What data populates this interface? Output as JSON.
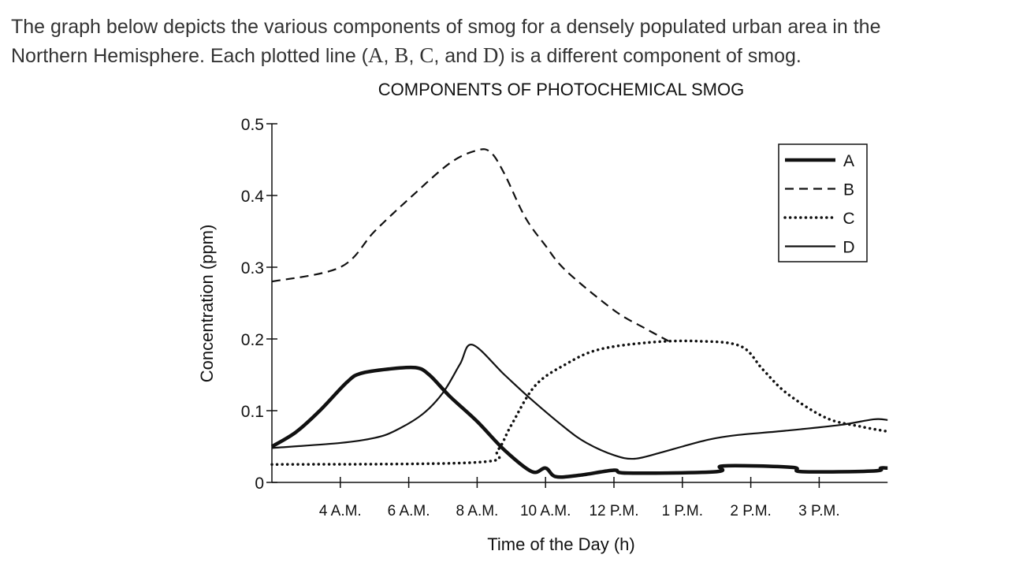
{
  "intro": {
    "line1": "The graph below depicts the various components of smog for a densely populated urban area in the",
    "line2_parts": [
      "Northern Hemisphere. Each plotted line (",
      "A",
      ", ",
      "B",
      ", ",
      "C",
      ", and ",
      "D",
      ") is a different component of smog."
    ]
  },
  "chart_data": {
    "type": "line",
    "title": "COMPONENTS OF PHOTOCHEMICAL SMOG",
    "xlabel": "Time of the Day (h)",
    "ylabel": "Concentration (ppm)",
    "x_tick_labels": [
      "4 A.M.",
      "6 A.M.",
      "8 A.M.",
      "10 A.M.",
      "12 P.M.",
      "1 P.M.",
      "2 P.M.",
      "3 P.M."
    ],
    "x_tick_positions": [
      1,
      2,
      3,
      4,
      5,
      6,
      7,
      8
    ],
    "xlim": [
      0,
      9
    ],
    "ylim": [
      0,
      0.5
    ],
    "y_ticks": [
      0,
      0.1,
      0.2,
      0.3,
      0.4,
      0.5
    ],
    "y_tick_labels": [
      "0",
      "0.1",
      "0.2",
      "0.3",
      "0.4",
      "0.5"
    ],
    "grid": false,
    "legend_position": "top-right",
    "series": [
      {
        "name": "A",
        "style": "thick-solid",
        "points": [
          [
            0,
            0.05
          ],
          [
            0.35,
            0.07
          ],
          [
            0.7,
            0.1
          ],
          [
            1.1,
            0.14
          ],
          [
            1.3,
            0.152
          ],
          [
            1.7,
            0.158
          ],
          [
            2.1,
            0.16
          ],
          [
            2.3,
            0.15
          ],
          [
            2.6,
            0.12
          ],
          [
            3.0,
            0.085
          ],
          [
            3.4,
            0.045
          ],
          [
            3.8,
            0.015
          ],
          [
            4.0,
            0.02
          ],
          [
            4.15,
            0.008
          ],
          [
            4.5,
            0.01
          ],
          [
            5.0,
            0.017
          ],
          [
            5.2,
            0.013
          ],
          [
            6.5,
            0.015
          ],
          [
            6.6,
            0.023
          ],
          [
            7.6,
            0.021
          ],
          [
            7.75,
            0.015
          ],
          [
            8.8,
            0.016
          ],
          [
            8.9,
            0.02
          ],
          [
            9.0,
            0.02
          ]
        ]
      },
      {
        "name": "B",
        "style": "dashed",
        "points": [
          [
            0,
            0.28
          ],
          [
            1.0,
            0.3
          ],
          [
            1.5,
            0.35
          ],
          [
            2.0,
            0.395
          ],
          [
            2.6,
            0.445
          ],
          [
            3.0,
            0.463
          ],
          [
            3.2,
            0.46
          ],
          [
            3.4,
            0.43
          ],
          [
            3.7,
            0.37
          ],
          [
            4.0,
            0.33
          ],
          [
            4.3,
            0.295
          ],
          [
            5.0,
            0.24
          ],
          [
            5.45,
            0.215
          ],
          [
            5.8,
            0.197
          ]
        ]
      },
      {
        "name": "C",
        "style": "dotted",
        "points": [
          [
            0,
            0.025
          ],
          [
            3.0,
            0.028
          ],
          [
            3.3,
            0.045
          ],
          [
            3.5,
            0.08
          ],
          [
            3.85,
            0.135
          ],
          [
            4.3,
            0.165
          ],
          [
            4.77,
            0.185
          ],
          [
            5.5,
            0.195
          ],
          [
            6.2,
            0.197
          ],
          [
            6.85,
            0.19
          ],
          [
            7.18,
            0.157
          ],
          [
            7.53,
            0.124
          ],
          [
            8.1,
            0.09
          ],
          [
            8.6,
            0.078
          ],
          [
            9.0,
            0.071
          ]
        ]
      },
      {
        "name": "D",
        "style": "thin-solid",
        "points": [
          [
            0,
            0.048
          ],
          [
            1.0,
            0.055
          ],
          [
            1.5,
            0.062
          ],
          [
            1.8,
            0.072
          ],
          [
            2.2,
            0.095
          ],
          [
            2.5,
            0.125
          ],
          [
            2.75,
            0.165
          ],
          [
            2.93,
            0.192
          ],
          [
            3.4,
            0.15
          ],
          [
            3.8,
            0.115
          ],
          [
            4.3,
            0.075
          ],
          [
            4.6,
            0.055
          ],
          [
            5.0,
            0.038
          ],
          [
            5.3,
            0.033
          ],
          [
            5.7,
            0.042
          ],
          [
            6.0,
            0.05
          ],
          [
            6.4,
            0.06
          ],
          [
            6.8,
            0.066
          ],
          [
            7.5,
            0.072
          ],
          [
            8.3,
            0.08
          ],
          [
            8.8,
            0.088
          ],
          [
            9.0,
            0.087
          ]
        ]
      }
    ]
  }
}
